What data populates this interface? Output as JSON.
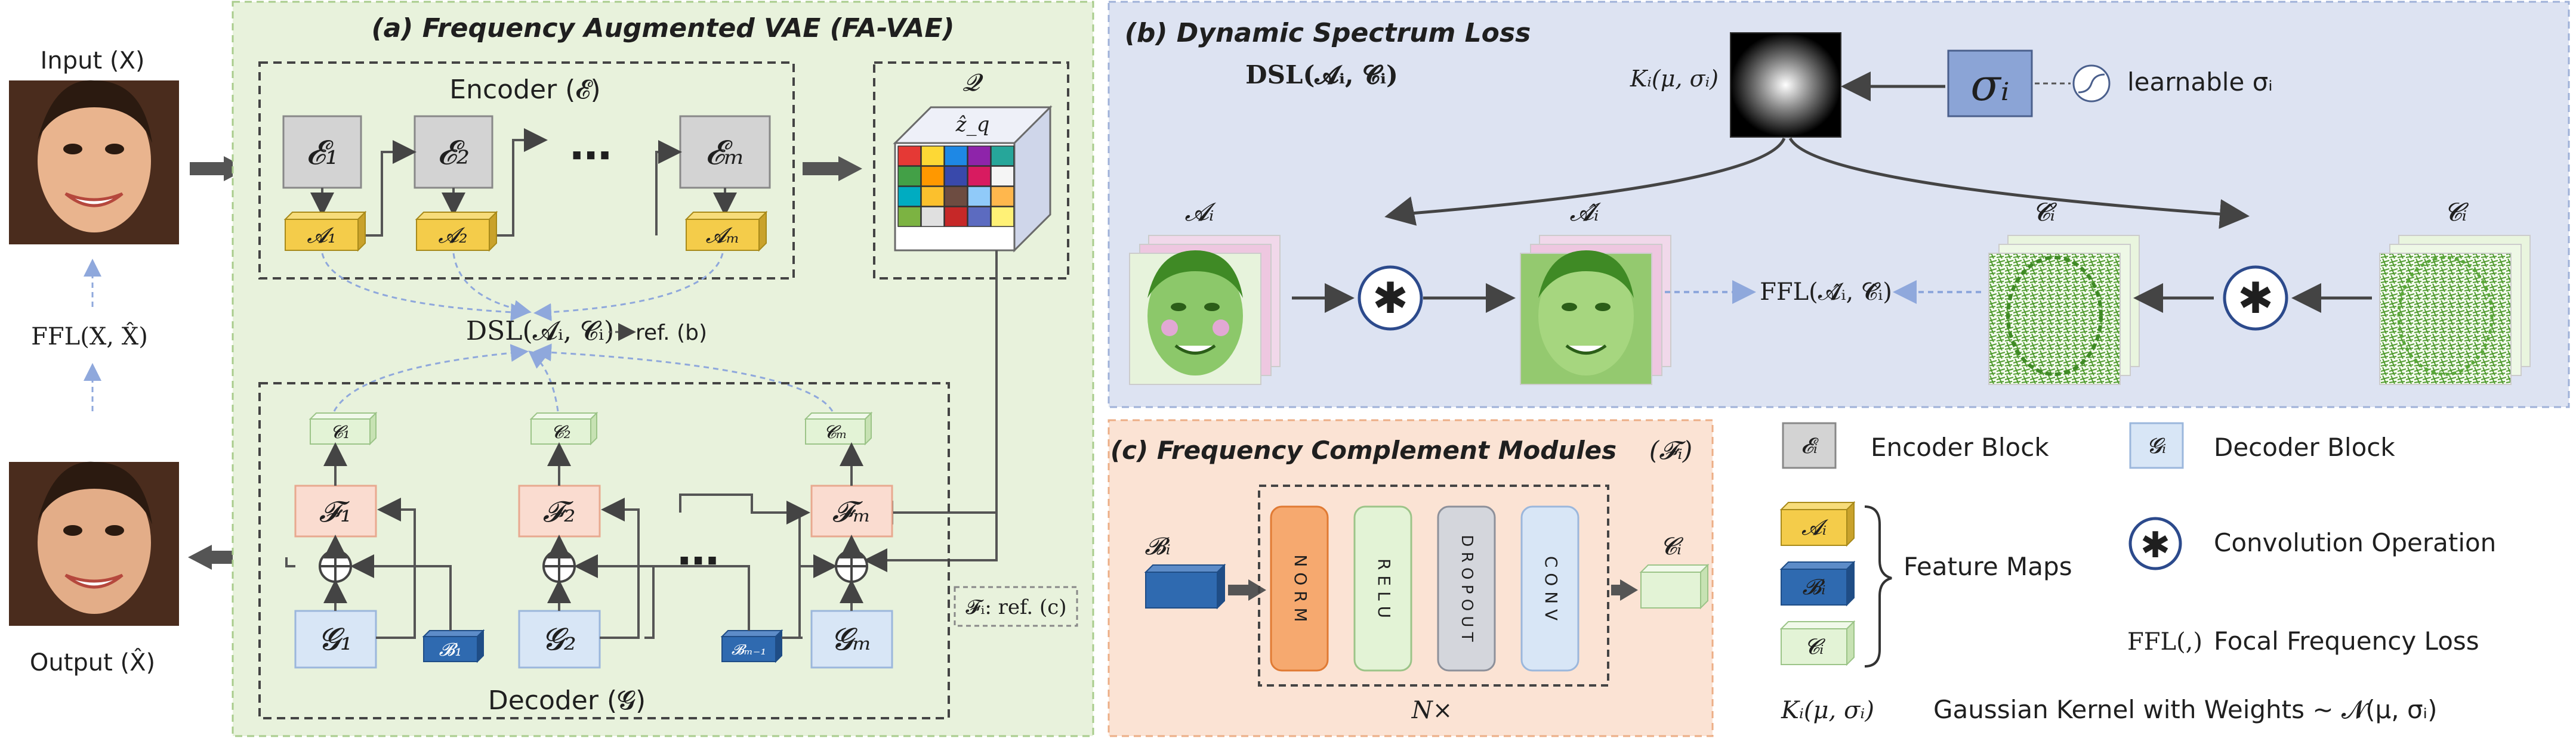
{
  "panels": {
    "a_title": "(a) Frequency Augmented VAE (FA-VAE)",
    "b_title": "(b) Dynamic Spectrum Loss",
    "c_title": "(c) Frequency Complement Modules",
    "c_title_symbol": "(𝓕ᵢ)"
  },
  "io": {
    "input_label": "Input (X)",
    "output_label": "Output (X̂)",
    "ffl_label": "FFL(X, X̂)"
  },
  "encoder": {
    "label": "Encoder (𝓔)",
    "blocks": [
      "𝓔₁",
      "𝓔₂",
      "𝓔ₘ"
    ],
    "dots": "⋯",
    "features": [
      "𝓐₁",
      "𝓐₂",
      "𝓐ₘ"
    ]
  },
  "quantizer": {
    "label": "𝓠",
    "z_label": "ẑ_q",
    "grid_colors": [
      "#e53935",
      "#fdd835",
      "#1e88e5",
      "#8e24aa",
      "#26a69a",
      "#43a047",
      "#ff9800",
      "#3949ab",
      "#d81b60",
      "#f5f5f5",
      "#00acc1",
      "#fbc02d",
      "#6d4c41",
      "#90caf9",
      "#ffb74d",
      "#7cb342",
      "#e0e0e0",
      "#c62828",
      "#5c6bc0",
      "#fff176"
    ]
  },
  "dsl": {
    "label": "DSL(𝓐ᵢ, 𝓒ᵢ)",
    "ref": "ref. (b)"
  },
  "decoder": {
    "label": "Decoder (𝓖)",
    "c_blocks": [
      "𝓒₁",
      "𝓒₂",
      "𝓒ₘ"
    ],
    "f_blocks": [
      "𝓕₁",
      "𝓕₂",
      "𝓕ₘ"
    ],
    "g_blocks": [
      "𝓖₁",
      "𝓖₂",
      "𝓖ₘ"
    ],
    "b_blocks": [
      "𝓑₁",
      "𝓑ₘ₋₁"
    ],
    "dots": "⋯",
    "f_ref": "𝓕ᵢ: ref. (c)"
  },
  "dsl_panel": {
    "heading": "DSL(𝓐ᵢ, 𝓒ᵢ)",
    "kernel_label": "Kᵢ(μ, σᵢ)",
    "sigma": "σᵢ",
    "learnable": "learnable σᵢ",
    "a_label": "𝓐ᵢ",
    "a_hat_label": "𝓐̂ᵢ",
    "c_hat_label": "𝓒̂ᵢ",
    "c_label": "𝓒ᵢ",
    "ffl_label": "FFL(𝓐̂ᵢ, 𝓒̂ᵢ)",
    "conv_symbol": "✱"
  },
  "fcm": {
    "input": "𝓑ᵢ",
    "output": "𝓒ᵢ",
    "layers": [
      "N O R M",
      "R E L U",
      "D R O P O U T",
      "C O N V"
    ],
    "repeat": "N×"
  },
  "legend": {
    "encoder_block": {
      "symbol": "𝓔ᵢ",
      "text": "Encoder Block"
    },
    "decoder_block": {
      "symbol": "𝓖ᵢ",
      "text": "Decoder Block"
    },
    "feature_maps": {
      "symbols": [
        "𝓐ᵢ",
        "𝓑ᵢ",
        "𝓒ᵢ"
      ],
      "text": "Feature Maps"
    },
    "conv": {
      "text": "Convolution Operation"
    },
    "ffl": {
      "symbol": "FFL(,)",
      "text": "Focal Frequency Loss"
    },
    "kernel": {
      "symbol": "Kᵢ(μ, σᵢ)",
      "text": "Gaussian Kernel with Weights ∼ 𝓝(μ, σᵢ)"
    }
  },
  "colors": {
    "panel_a_bg": "#e8f2dc",
    "panel_b_bg": "#dde3f2",
    "panel_c_bg": "#fbe3d4",
    "yellow": "#f4cc4a",
    "blue": "#2f6ab0",
    "green_light": "#e3f3d6",
    "gray_block": "#d3d3d3",
    "pink_block": "#fadcd0",
    "decoder_block": "#d8e6f6"
  }
}
